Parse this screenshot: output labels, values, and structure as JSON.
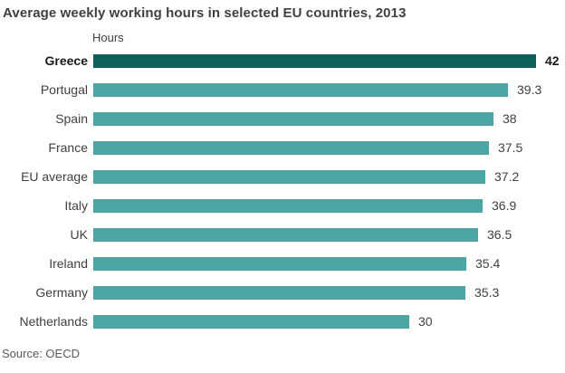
{
  "chart_data": {
    "type": "bar",
    "orientation": "horizontal",
    "title": "Average weekly working hours in selected EU countries, 2013",
    "unit_label": "Hours",
    "source": "Source: OECD",
    "categories": [
      "Greece",
      "Portugal",
      "Spain",
      "France",
      "EU average",
      "Italy",
      "UK",
      "Ireland",
      "Germany",
      "Netherlands"
    ],
    "values": [
      42,
      39.3,
      38,
      37.5,
      37.2,
      36.9,
      36.5,
      35.4,
      35.3,
      30
    ],
    "value_labels": [
      "42",
      "39.3",
      "38",
      "37.5",
      "37.2",
      "36.9",
      "36.5",
      "35.4",
      "35.3",
      "30"
    ],
    "emphasized_index": 0,
    "xlim": [
      0,
      42
    ],
    "grid": false,
    "legend": false,
    "colors": {
      "normal": "#4ba5a2",
      "emphasis": "#0d5f5b",
      "title_text": "#404040",
      "label_text": "#404040",
      "emphasis_text": "#1a1a1a",
      "source_text": "#595959"
    }
  }
}
